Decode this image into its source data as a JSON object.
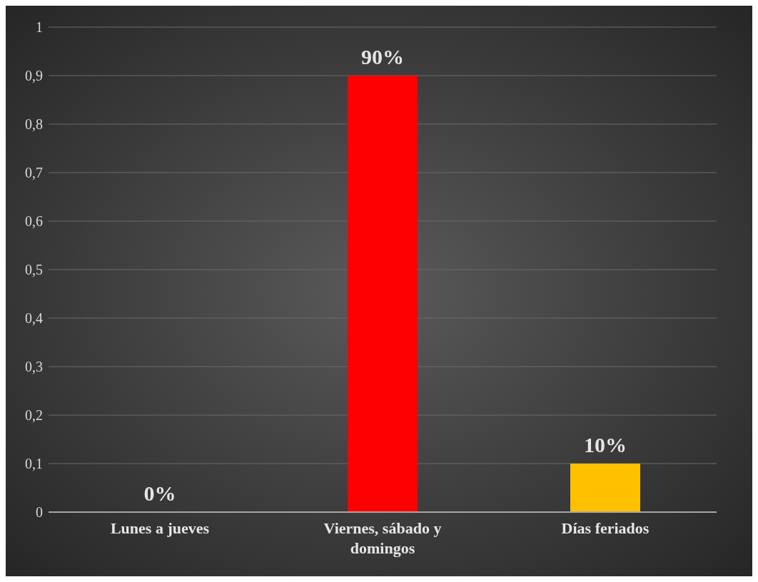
{
  "chart_data": {
    "type": "bar",
    "categories": [
      "Lunes a jueves",
      "Viernes, sábado y domingos",
      "Días feriados"
    ],
    "values": [
      0,
      0.9,
      0.1
    ],
    "colors": [
      "#ff0000",
      "#ff0000",
      "#ffc000"
    ],
    "value_labels": [
      "0%",
      "90%",
      "10%"
    ],
    "ylim": [
      0,
      1
    ],
    "yticks": [
      0,
      {
        "value": 0.1,
        "label": "0,1"
      },
      {
        "value": 0.2,
        "label": "0,2"
      },
      {
        "value": 0.3,
        "label": "0,3"
      },
      {
        "value": 0.4,
        "label": "0,4"
      },
      {
        "value": 0.5,
        "label": "0,5"
      },
      {
        "value": 0.6,
        "label": "0,6"
      },
      {
        "value": 0.7,
        "label": "0,7"
      },
      {
        "value": 0.8,
        "label": "0,8"
      },
      {
        "value": 0.9,
        "label": "0,9"
      },
      1
    ],
    "grid": "y",
    "legend": false
  }
}
